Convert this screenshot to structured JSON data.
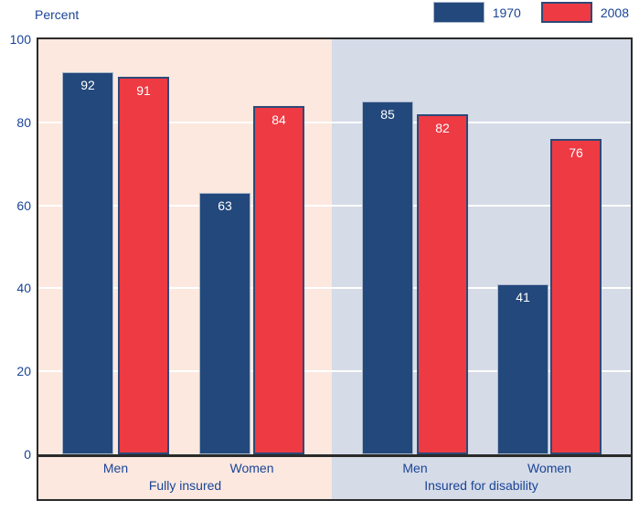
{
  "chart_data": {
    "type": "bar",
    "ylabel": "Percent",
    "ylim": [
      0,
      100
    ],
    "yticks": [
      "0",
      "20",
      "40",
      "60",
      "80",
      "100"
    ],
    "ytick_values": [
      0,
      20,
      40,
      60,
      80,
      100
    ],
    "gridlines": [
      20,
      40,
      60,
      80
    ],
    "grid_on": true,
    "legend_position": "top-right",
    "legend": [
      {
        "label": "1970",
        "color": "#23487b"
      },
      {
        "label": "2008",
        "color": "#ee3a43"
      }
    ],
    "categories": [
      "Men",
      "Women",
      "Men",
      "Women"
    ],
    "series": [
      {
        "name": "1970",
        "values": [
          92,
          63,
          85,
          41
        ]
      },
      {
        "name": "2008",
        "values": [
          91,
          84,
          82,
          76
        ]
      }
    ],
    "sections": [
      {
        "label": "Fully insured",
        "background": "#fce8df",
        "groups": [
          {
            "category": "Men",
            "values": [
              92,
              91
            ]
          },
          {
            "category": "Women",
            "values": [
              63,
              84
            ]
          }
        ]
      },
      {
        "label": "Insured for disability",
        "background": "#d5dbe7",
        "groups": [
          {
            "category": "Men",
            "values": [
              85,
              82
            ]
          },
          {
            "category": "Women",
            "values": [
              41,
              76
            ]
          }
        ]
      }
    ]
  }
}
